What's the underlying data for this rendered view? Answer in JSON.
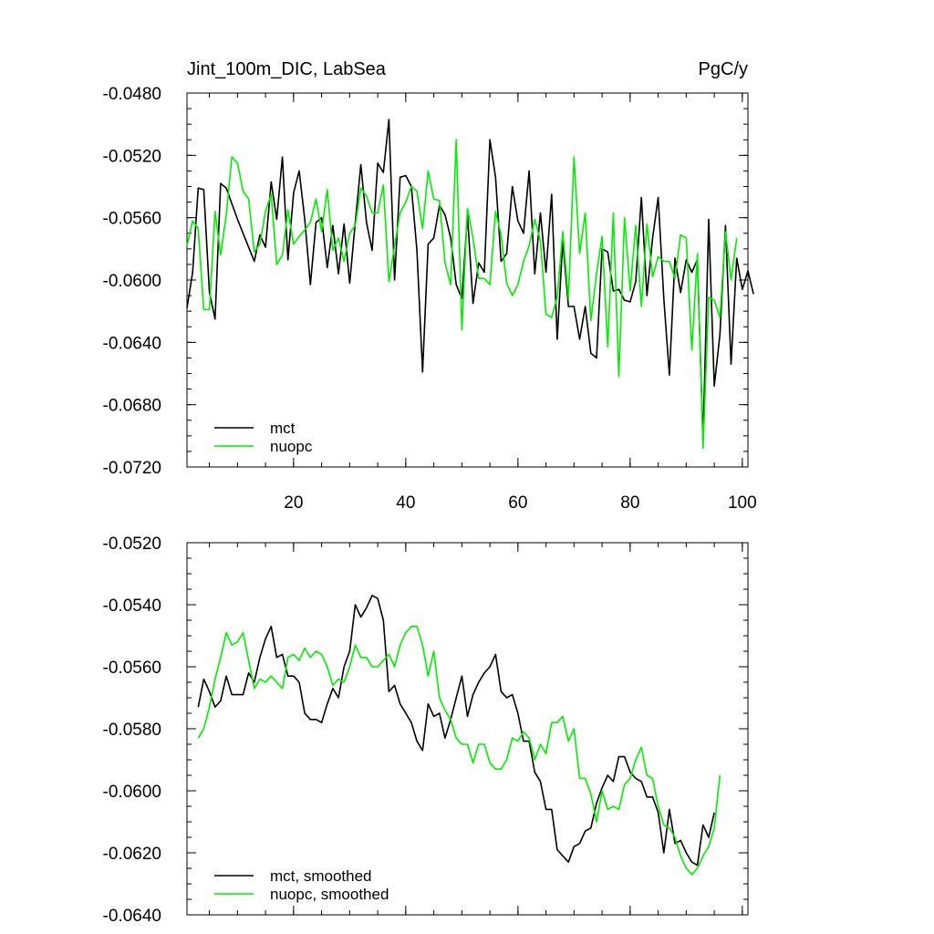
{
  "chart_data": [
    {
      "type": "line",
      "title": "Jint_100m_DIC, LabSea",
      "units": "PgC/y",
      "xlim": [
        1,
        101
      ],
      "ylim": [
        -0.072,
        -0.048
      ],
      "xticks": [
        20,
        40,
        60,
        80,
        100
      ],
      "yticks": [
        -0.072,
        -0.068,
        -0.064,
        -0.06,
        -0.056,
        -0.052,
        -0.048
      ],
      "ytick_labels": [
        "-0.0720",
        "-0.0680",
        "-0.0640",
        "-0.0600",
        "-0.0560",
        "-0.0520",
        "-0.0480"
      ],
      "legend_position": "bottom-left",
      "series": [
        {
          "name": "mct",
          "color": "#000000",
          "x_start": 1,
          "values": [
            -0.0618,
            -0.0595,
            -0.0541,
            -0.0542,
            -0.0608,
            -0.0625,
            -0.0538,
            -0.0541,
            -0.0551,
            -0.0561,
            -0.057,
            -0.0579,
            -0.0588,
            -0.0571,
            -0.0579,
            -0.0537,
            -0.0561,
            -0.0521,
            -0.0587,
            -0.0544,
            -0.053,
            -0.0561,
            -0.0603,
            -0.0563,
            -0.056,
            -0.0592,
            -0.0565,
            -0.0596,
            -0.0564,
            -0.0602,
            -0.0563,
            -0.0526,
            -0.0563,
            -0.0581,
            -0.0525,
            -0.0531,
            -0.0497,
            -0.06,
            -0.0534,
            -0.0533,
            -0.054,
            -0.0581,
            -0.0659,
            -0.0577,
            -0.0573,
            -0.0552,
            -0.0558,
            -0.0573,
            -0.0603,
            -0.0612,
            -0.0558,
            -0.0615,
            -0.0589,
            -0.0595,
            -0.051,
            -0.0534,
            -0.0588,
            -0.0583,
            -0.054,
            -0.0562,
            -0.057,
            -0.053,
            -0.0596,
            -0.0557,
            -0.0595,
            -0.0545,
            -0.0638,
            -0.0575,
            -0.0617,
            -0.0617,
            -0.0638,
            -0.0617,
            -0.0647,
            -0.065,
            -0.058,
            -0.0582,
            -0.0607,
            -0.0606,
            -0.0613,
            -0.0614,
            -0.0601,
            -0.0547,
            -0.061,
            -0.0573,
            -0.0547,
            -0.0612,
            -0.0661,
            -0.0586,
            -0.0608,
            -0.0587,
            -0.0595,
            -0.0587,
            -0.0703,
            -0.0561,
            -0.0668,
            -0.0635,
            -0.0565,
            -0.0654,
            -0.0586,
            -0.0606,
            -0.0594,
            -0.0609
          ]
        },
        {
          "name": "nuopc",
          "color": "#00ee00",
          "x_start": 1,
          "values": [
            -0.0578,
            -0.0562,
            -0.0567,
            -0.0619,
            -0.0619,
            -0.0556,
            -0.0584,
            -0.0558,
            -0.0521,
            -0.0525,
            -0.0543,
            -0.0548,
            -0.0582,
            -0.0577,
            -0.0556,
            -0.0545,
            -0.059,
            -0.0584,
            -0.0555,
            -0.0577,
            -0.0572,
            -0.0568,
            -0.0563,
            -0.0548,
            -0.0569,
            -0.0542,
            -0.0581,
            -0.0573,
            -0.0588,
            -0.057,
            -0.0565,
            -0.0541,
            -0.0546,
            -0.0557,
            -0.0557,
            -0.0539,
            -0.0601,
            -0.0578,
            -0.0557,
            -0.055,
            -0.054,
            -0.0543,
            -0.0567,
            -0.053,
            -0.0548,
            -0.0549,
            -0.0589,
            -0.0603,
            -0.051,
            -0.0632,
            -0.0554,
            -0.0573,
            -0.0599,
            -0.0599,
            -0.0603,
            -0.0556,
            -0.0571,
            -0.0602,
            -0.061,
            -0.0603,
            -0.0588,
            -0.0578,
            -0.0561,
            -0.0575,
            -0.0622,
            -0.0624,
            -0.0611,
            -0.0569,
            -0.0612,
            -0.0521,
            -0.0583,
            -0.0557,
            -0.0626,
            -0.0596,
            -0.0572,
            -0.0643,
            -0.0557,
            -0.0662,
            -0.056,
            -0.0607,
            -0.0565,
            -0.0617,
            -0.0564,
            -0.0598,
            -0.0585,
            -0.0588,
            -0.0588,
            -0.0599,
            -0.0571,
            -0.0573,
            -0.0645,
            -0.0583,
            -0.0708,
            -0.0611,
            -0.0613,
            -0.0624,
            -0.0569,
            -0.06,
            -0.0573
          ]
        }
      ]
    },
    {
      "type": "line",
      "xlim": [
        1,
        101
      ],
      "ylim": [
        -0.064,
        -0.052
      ],
      "xticks": [
        20,
        40,
        60,
        80,
        100
      ],
      "yticks": [
        -0.064,
        -0.062,
        -0.06,
        -0.058,
        -0.056,
        -0.054,
        -0.052
      ],
      "ytick_labels": [
        "-0.0640",
        "-0.0620",
        "-0.0600",
        "-0.0580",
        "-0.0560",
        "-0.0540",
        "-0.0520"
      ],
      "legend_position": "bottom-left",
      "series": [
        {
          "name": "mct, smoothed",
          "color": "#000000",
          "x_start": 3,
          "values": [
            -0.0573,
            -0.0564,
            -0.0568,
            -0.0573,
            -0.0571,
            -0.0563,
            -0.0569,
            -0.0569,
            -0.0569,
            -0.0562,
            -0.0565,
            -0.0557,
            -0.0551,
            -0.0547,
            -0.0557,
            -0.0556,
            -0.0563,
            -0.0563,
            -0.0565,
            -0.0575,
            -0.0577,
            -0.0577,
            -0.0578,
            -0.0572,
            -0.0567,
            -0.057,
            -0.056,
            -0.0555,
            -0.054,
            -0.0544,
            -0.0541,
            -0.0537,
            -0.0538,
            -0.0545,
            -0.0568,
            -0.0566,
            -0.0572,
            -0.0575,
            -0.0578,
            -0.0584,
            -0.0587,
            -0.0572,
            -0.0576,
            -0.0575,
            -0.0583,
            -0.0577,
            -0.057,
            -0.0563,
            -0.0576,
            -0.0569,
            -0.0565,
            -0.0562,
            -0.056,
            -0.0556,
            -0.0568,
            -0.057,
            -0.0569,
            -0.0575,
            -0.0584,
            -0.0584,
            -0.0594,
            -0.0597,
            -0.0606,
            -0.0606,
            -0.0619,
            -0.0621,
            -0.0623,
            -0.0618,
            -0.0617,
            -0.0613,
            -0.0612,
            -0.0604,
            -0.0599,
            -0.0595,
            -0.0597,
            -0.0589,
            -0.0589,
            -0.0594,
            -0.0596,
            -0.0597,
            -0.0602,
            -0.0602,
            -0.0607,
            -0.062,
            -0.0606,
            -0.0617,
            -0.0616,
            -0.062,
            -0.0623,
            -0.0624,
            -0.0611,
            -0.0615,
            -0.0607
          ]
        },
        {
          "name": "nuopc, smoothed",
          "color": "#00ee00",
          "x_start": 3,
          "values": [
            -0.0583,
            -0.058,
            -0.0573,
            -0.0564,
            -0.0557,
            -0.0549,
            -0.0553,
            -0.0552,
            -0.0549,
            -0.0558,
            -0.0567,
            -0.0564,
            -0.0565,
            -0.0563,
            -0.0565,
            -0.0567,
            -0.0557,
            -0.0556,
            -0.0558,
            -0.0554,
            -0.0557,
            -0.0555,
            -0.0556,
            -0.056,
            -0.0566,
            -0.0564,
            -0.0565,
            -0.056,
            -0.0553,
            -0.0557,
            -0.0557,
            -0.056,
            -0.056,
            -0.0558,
            -0.0556,
            -0.056,
            -0.0553,
            -0.0549,
            -0.0547,
            -0.0547,
            -0.0553,
            -0.0563,
            -0.0555,
            -0.057,
            -0.0574,
            -0.0577,
            -0.0583,
            -0.0585,
            -0.0585,
            -0.0591,
            -0.0585,
            -0.0585,
            -0.0591,
            -0.0593,
            -0.0593,
            -0.059,
            -0.0583,
            -0.0584,
            -0.0581,
            -0.0583,
            -0.059,
            -0.0585,
            -0.0588,
            -0.0578,
            -0.0578,
            -0.0576,
            -0.0584,
            -0.058,
            -0.0596,
            -0.0596,
            -0.0601,
            -0.061,
            -0.06,
            -0.0606,
            -0.0605,
            -0.0606,
            -0.0598,
            -0.0596,
            -0.059,
            -0.0586,
            -0.0595,
            -0.0596,
            -0.0605,
            -0.0611,
            -0.0612,
            -0.0615,
            -0.0621,
            -0.0625,
            -0.0627,
            -0.0625,
            -0.0621,
            -0.0618,
            -0.0612,
            -0.0595
          ]
        }
      ]
    }
  ]
}
